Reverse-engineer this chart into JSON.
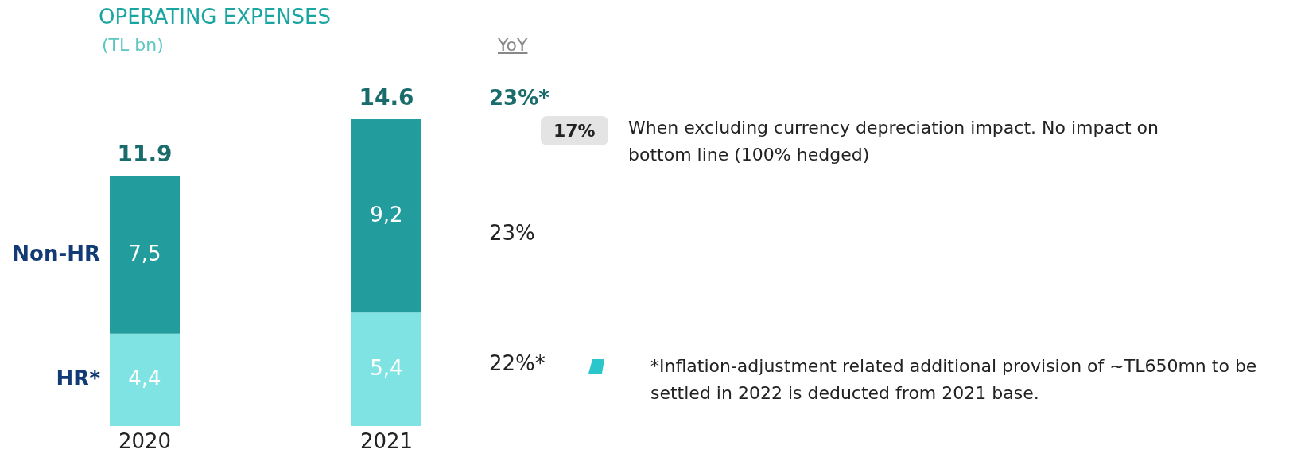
{
  "chart_data": {
    "type": "bar",
    "title": "OPERATING EXPENSES",
    "subtitle": "(TL bn)",
    "categories": [
      "2020",
      "2021"
    ],
    "stacked": true,
    "series": [
      {
        "name": "HR*",
        "color": "#80e3e3",
        "values": [
          4.4,
          5.4
        ],
        "value_labels": [
          "4,4",
          "5,4"
        ]
      },
      {
        "name": "Non-HR",
        "color": "#229c9c",
        "values": [
          7.5,
          9.2
        ],
        "value_labels": [
          "7,5",
          "9,2"
        ]
      }
    ],
    "totals": [
      "11.9",
      "14.6"
    ],
    "annotations": [
      "YoY",
      "23%*",
      "17%",
      "When excluding currency depreciation impact. No impact on bottom line  (100% hedged)",
      "23%",
      "22%*",
      "*Inflation-adjustment related additional provision of ~TL650mn to be settled in 2022 is deducted from 2021 base."
    ]
  }
}
